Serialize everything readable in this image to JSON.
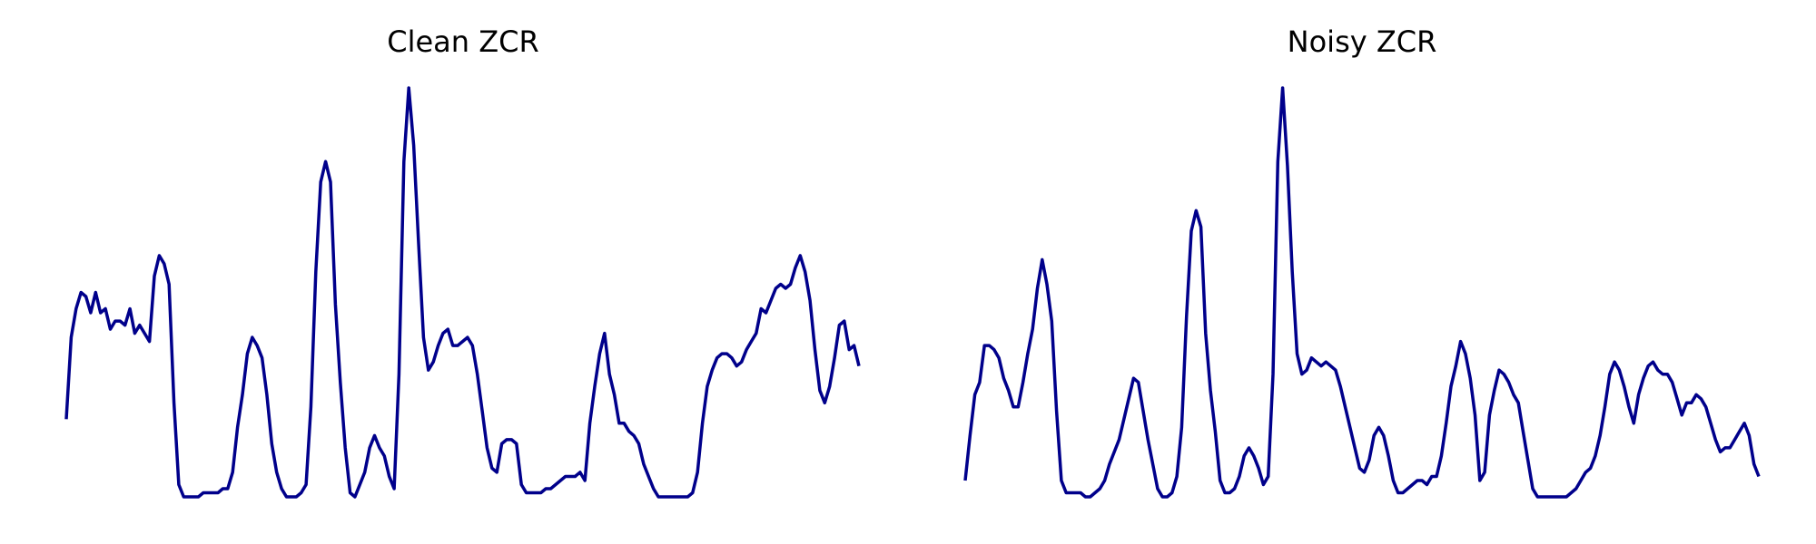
{
  "colors": {
    "line": "#00008B",
    "background": "#FFFFFF"
  },
  "chart_data": [
    {
      "type": "line",
      "title": "Clean ZCR",
      "xlabel": "",
      "ylabel": "",
      "axes": "off",
      "grid": false,
      "x_range": [
        0,
        120
      ],
      "y_range": [
        0,
        1
      ],
      "y": [
        0.19,
        0.39,
        0.46,
        0.5,
        0.49,
        0.45,
        0.5,
        0.45,
        0.46,
        0.41,
        0.43,
        0.43,
        0.42,
        0.46,
        0.4,
        0.42,
        0.4,
        0.38,
        0.54,
        0.59,
        0.57,
        0.52,
        0.23,
        0.03,
        0.0,
        0.0,
        0.0,
        0.0,
        0.01,
        0.01,
        0.01,
        0.01,
        0.02,
        0.02,
        0.06,
        0.17,
        0.25,
        0.35,
        0.39,
        0.37,
        0.34,
        0.25,
        0.13,
        0.06,
        0.02,
        0.0,
        0.0,
        0.0,
        0.01,
        0.03,
        0.22,
        0.55,
        0.77,
        0.82,
        0.77,
        0.47,
        0.28,
        0.12,
        0.01,
        0.0,
        0.03,
        0.06,
        0.12,
        0.15,
        0.12,
        0.1,
        0.05,
        0.02,
        0.3,
        0.82,
        1.0,
        0.86,
        0.62,
        0.39,
        0.31,
        0.33,
        0.37,
        0.4,
        0.41,
        0.37,
        0.37,
        0.38,
        0.39,
        0.37,
        0.3,
        0.21,
        0.12,
        0.07,
        0.06,
        0.13,
        0.14,
        0.14,
        0.13,
        0.03,
        0.01,
        0.01,
        0.01,
        0.01,
        0.02,
        0.02,
        0.03,
        0.04,
        0.05,
        0.05,
        0.05,
        0.06,
        0.04,
        0.18,
        0.27,
        0.35,
        0.4,
        0.3,
        0.25,
        0.18,
        0.18,
        0.16,
        0.15,
        0.13,
        0.08,
        0.05,
        0.02,
        0.0,
        0.0,
        0.0,
        0.0,
        0.0,
        0.0,
        0.0,
        0.01,
        0.06,
        0.18,
        0.27,
        0.31,
        0.34,
        0.35,
        0.35,
        0.34,
        0.32,
        0.33,
        0.36,
        0.38,
        0.4,
        0.46,
        0.45,
        0.48,
        0.51,
        0.52,
        0.51,
        0.52,
        0.56,
        0.59,
        0.55,
        0.48,
        0.36,
        0.26,
        0.23,
        0.27,
        0.34,
        0.42,
        0.43,
        0.36,
        0.37,
        0.32
      ]
    },
    {
      "type": "line",
      "title": "Noisy ZCR",
      "xlabel": "",
      "ylabel": "",
      "axes": "off",
      "grid": false,
      "x_range": [
        0,
        120
      ],
      "y_range": [
        0,
        1
      ],
      "y": [
        0.04,
        0.15,
        0.25,
        0.28,
        0.37,
        0.37,
        0.36,
        0.34,
        0.29,
        0.26,
        0.22,
        0.22,
        0.28,
        0.35,
        0.41,
        0.51,
        0.58,
        0.52,
        0.43,
        0.21,
        0.04,
        0.01,
        0.01,
        0.01,
        0.01,
        0.0,
        0.0,
        0.01,
        0.02,
        0.04,
        0.08,
        0.11,
        0.14,
        0.19,
        0.24,
        0.29,
        0.28,
        0.21,
        0.14,
        0.08,
        0.02,
        0.0,
        0.0,
        0.01,
        0.05,
        0.17,
        0.44,
        0.65,
        0.7,
        0.66,
        0.4,
        0.26,
        0.16,
        0.04,
        0.01,
        0.01,
        0.02,
        0.05,
        0.1,
        0.12,
        0.1,
        0.07,
        0.03,
        0.05,
        0.3,
        0.82,
        1.0,
        0.81,
        0.55,
        0.35,
        0.3,
        0.31,
        0.34,
        0.33,
        0.32,
        0.33,
        0.32,
        0.31,
        0.27,
        0.22,
        0.17,
        0.12,
        0.07,
        0.06,
        0.09,
        0.15,
        0.17,
        0.15,
        0.1,
        0.04,
        0.01,
        0.01,
        0.02,
        0.03,
        0.04,
        0.04,
        0.03,
        0.05,
        0.05,
        0.1,
        0.18,
        0.27,
        0.32,
        0.38,
        0.35,
        0.29,
        0.2,
        0.04,
        0.06,
        0.2,
        0.26,
        0.31,
        0.3,
        0.28,
        0.25,
        0.23,
        0.16,
        0.09,
        0.02,
        0.0,
        0.0,
        0.0,
        0.0,
        0.0,
        0.0,
        0.0,
        0.01,
        0.02,
        0.04,
        0.06,
        0.07,
        0.1,
        0.15,
        0.22,
        0.3,
        0.33,
        0.31,
        0.27,
        0.22,
        0.18,
        0.25,
        0.29,
        0.32,
        0.33,
        0.31,
        0.3,
        0.3,
        0.28,
        0.24,
        0.2,
        0.23,
        0.23,
        0.25,
        0.24,
        0.22,
        0.18,
        0.14,
        0.11,
        0.12,
        0.12,
        0.14,
        0.16,
        0.18,
        0.15,
        0.08,
        0.05
      ]
    }
  ]
}
